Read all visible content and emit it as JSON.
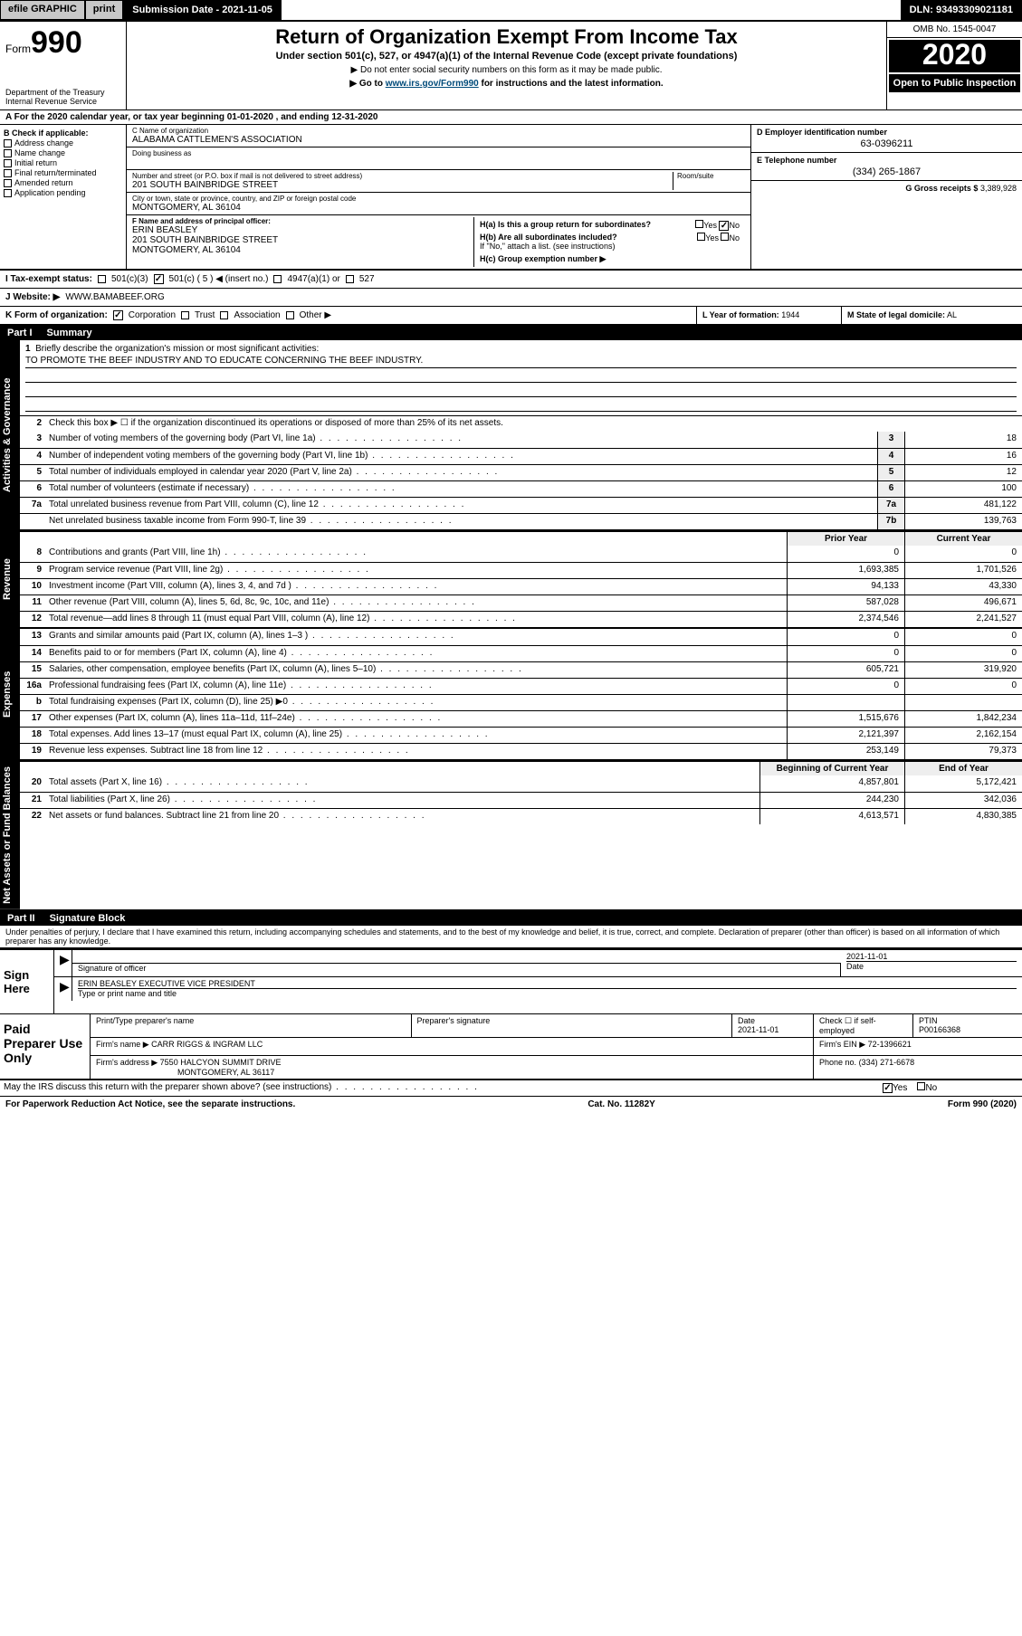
{
  "topbar": {
    "efile_label": "efile GRAPHIC",
    "print_label": "print",
    "submission_label": "Submission Date - 2021-11-05",
    "dln_label": "DLN: 93493309021181"
  },
  "header": {
    "form_word": "Form",
    "form_number": "990",
    "dept1": "Department of the Treasury",
    "dept2": "Internal Revenue Service",
    "title": "Return of Organization Exempt From Income Tax",
    "sub1": "Under section 501(c), 527, or 4947(a)(1) of the Internal Revenue Code (except private foundations)",
    "sub2": "▶ Do not enter social security numbers on this form as it may be made public.",
    "sub3_pre": "▶ Go to ",
    "sub3_link": "www.irs.gov/Form990",
    "sub3_post": " for instructions and the latest information.",
    "omb": "OMB No. 1545-0047",
    "year": "2020",
    "open": "Open to Public Inspection"
  },
  "period": {
    "line": "A For the 2020 calendar year, or tax year beginning 01-01-2020   , and ending 12-31-2020"
  },
  "checkB": {
    "title": "B Check if applicable:",
    "addr": "Address change",
    "name": "Name change",
    "initial": "Initial return",
    "final": "Final return/terminated",
    "amended": "Amended return",
    "app": "Application pending"
  },
  "entity": {
    "c_lbl": "C Name of organization",
    "c_val": "ALABAMA CATTLEMEN'S ASSOCIATION",
    "dba_lbl": "Doing business as",
    "street_lbl": "Number and street (or P.O. box if mail is not delivered to street address)",
    "room_lbl": "Room/suite",
    "street_val": "201 SOUTH BAINBRIDGE STREET",
    "city_lbl": "City or town, state or province, country, and ZIP or foreign postal code",
    "city_val": "MONTGOMERY, AL  36104",
    "f_lbl": "F Name and address of principal officer:",
    "f_name": "ERIN BEASLEY",
    "f_addr1": "201 SOUTH BAINBRIDGE STREET",
    "f_addr2": "MONTGOMERY, AL  36104"
  },
  "right": {
    "d_lbl": "D Employer identification number",
    "d_val": "63-0396211",
    "e_lbl": "E Telephone number",
    "e_val": "(334) 265-1867",
    "g_lbl": "G Gross receipts $",
    "g_val": "3,389,928",
    "ha_lbl": "H(a)  Is this a group return for subordinates?",
    "hb_lbl": "H(b)  Are all subordinates included?",
    "h_note": "If \"No,\" attach a list. (see instructions)",
    "hc_lbl": "H(c)  Group exemption number ▶",
    "yes": "Yes",
    "no": "No"
  },
  "taxstatus": {
    "i_lbl": "I  Tax-exempt status:",
    "s501c3": "501(c)(3)",
    "s501c": "501(c) ( 5 ) ◀ (insert no.)",
    "s4947": "4947(a)(1) or",
    "s527": "527"
  },
  "website": {
    "j_lbl": "J  Website: ▶",
    "j_val": "WWW.BAMABEEF.ORG"
  },
  "korg": {
    "k_lbl": "K Form of organization:",
    "corp": "Corporation",
    "trust": "Trust",
    "assoc": "Association",
    "other": "Other ▶",
    "l_lbl": "L Year of formation:",
    "l_val": "1944",
    "m_lbl": "M State of legal domicile:",
    "m_val": "AL"
  },
  "part1": {
    "hdr_part": "Part I",
    "hdr_title": "Summary",
    "tab_gov": "Activities & Governance",
    "tab_rev": "Revenue",
    "tab_exp": "Expenses",
    "tab_net": "Net Assets or Fund Balances",
    "l1_desc": "Briefly describe the organization's mission or most significant activities:",
    "l1_val": "TO PROMOTE THE BEEF INDUSTRY AND TO EDUCATE CONCERNING THE BEEF INDUSTRY.",
    "l2_desc": "Check this box ▶ ☐  if the organization discontinued its operations or disposed of more than 25% of its net assets.",
    "prior_hdr": "Prior Year",
    "current_hdr": "Current Year",
    "boy_hdr": "Beginning of Current Year",
    "eoy_hdr": "End of Year",
    "lines_single": [
      {
        "n": "3",
        "d": "Number of voting members of the governing body (Part VI, line 1a)",
        "b": "3",
        "v": "18"
      },
      {
        "n": "4",
        "d": "Number of independent voting members of the governing body (Part VI, line 1b)",
        "b": "4",
        "v": "16"
      },
      {
        "n": "5",
        "d": "Total number of individuals employed in calendar year 2020 (Part V, line 2a)",
        "b": "5",
        "v": "12"
      },
      {
        "n": "6",
        "d": "Total number of volunteers (estimate if necessary)",
        "b": "6",
        "v": "100"
      },
      {
        "n": "7a",
        "d": "Total unrelated business revenue from Part VIII, column (C), line 12",
        "b": "7a",
        "v": "481,122"
      },
      {
        "n": "",
        "d": "Net unrelated business taxable income from Form 990-T, line 39",
        "b": "7b",
        "v": "139,763"
      }
    ],
    "lines_rev": [
      {
        "n": "8",
        "d": "Contributions and grants (Part VIII, line 1h)",
        "p": "0",
        "c": "0"
      },
      {
        "n": "9",
        "d": "Program service revenue (Part VIII, line 2g)",
        "p": "1,693,385",
        "c": "1,701,526"
      },
      {
        "n": "10",
        "d": "Investment income (Part VIII, column (A), lines 3, 4, and 7d )",
        "p": "94,133",
        "c": "43,330"
      },
      {
        "n": "11",
        "d": "Other revenue (Part VIII, column (A), lines 5, 6d, 8c, 9c, 10c, and 11e)",
        "p": "587,028",
        "c": "496,671"
      },
      {
        "n": "12",
        "d": "Total revenue—add lines 8 through 11 (must equal Part VIII, column (A), line 12)",
        "p": "2,374,546",
        "c": "2,241,527"
      }
    ],
    "lines_exp": [
      {
        "n": "13",
        "d": "Grants and similar amounts paid (Part IX, column (A), lines 1–3 )",
        "p": "0",
        "c": "0"
      },
      {
        "n": "14",
        "d": "Benefits paid to or for members (Part IX, column (A), line 4)",
        "p": "0",
        "c": "0"
      },
      {
        "n": "15",
        "d": "Salaries, other compensation, employee benefits (Part IX, column (A), lines 5–10)",
        "p": "605,721",
        "c": "319,920"
      },
      {
        "n": "16a",
        "d": "Professional fundraising fees (Part IX, column (A), line 11e)",
        "p": "0",
        "c": "0"
      },
      {
        "n": "b",
        "d": "Total fundraising expenses (Part IX, column (D), line 25) ▶0",
        "p": "",
        "c": ""
      },
      {
        "n": "17",
        "d": "Other expenses (Part IX, column (A), lines 11a–11d, 11f–24e)",
        "p": "1,515,676",
        "c": "1,842,234"
      },
      {
        "n": "18",
        "d": "Total expenses. Add lines 13–17 (must equal Part IX, column (A), line 25)",
        "p": "2,121,397",
        "c": "2,162,154"
      },
      {
        "n": "19",
        "d": "Revenue less expenses. Subtract line 18 from line 12",
        "p": "253,149",
        "c": "79,373"
      }
    ],
    "lines_net": [
      {
        "n": "20",
        "d": "Total assets (Part X, line 16)",
        "p": "4,857,801",
        "c": "5,172,421"
      },
      {
        "n": "21",
        "d": "Total liabilities (Part X, line 26)",
        "p": "244,230",
        "c": "342,036"
      },
      {
        "n": "22",
        "d": "Net assets or fund balances. Subtract line 21 from line 20",
        "p": "4,613,571",
        "c": "4,830,385"
      }
    ]
  },
  "part2": {
    "hdr_part": "Part II",
    "hdr_title": "Signature Block",
    "declare": "Under penalties of perjury, I declare that I have examined this return, including accompanying schedules and statements, and to the best of my knowledge and belief, it is true, correct, and complete. Declaration of preparer (other than officer) is based on all information of which preparer has any knowledge."
  },
  "sign": {
    "here": "Sign Here",
    "sig_lbl": "Signature of officer",
    "date_lbl": "Date",
    "date_val": "2021-11-01",
    "name_val": "ERIN BEASLEY  EXECUTIVE VICE PRESIDENT",
    "name_lbl": "Type or print name and title"
  },
  "prep": {
    "title": "Paid Preparer Use Only",
    "r1c1": "Print/Type preparer's name",
    "r1c2": "Preparer's signature",
    "r1c3_lbl": "Date",
    "r1c3_val": "2021-11-01",
    "r1c4": "Check ☐ if self-employed",
    "r1c5_lbl": "PTIN",
    "r1c5_val": "P00166368",
    "r2_lbl": "Firm's name    ▶",
    "r2_val": "CARR RIGGS & INGRAM LLC",
    "r2_ein_lbl": "Firm's EIN ▶",
    "r2_ein_val": "72-1396621",
    "r3_lbl": "Firm's address ▶",
    "r3_val1": "7550 HALCYON SUMMIT DRIVE",
    "r3_val2": "MONTGOMERY, AL  36117",
    "r3_ph_lbl": "Phone no.",
    "r3_ph_val": "(334) 271-6678"
  },
  "discuss": {
    "q": "May the IRS discuss this return with the preparer shown above? (see instructions)",
    "yes": "Yes",
    "no": "No"
  },
  "footer": {
    "left": "For Paperwork Reduction Act Notice, see the separate instructions.",
    "mid": "Cat. No. 11282Y",
    "right": "Form 990 (2020)"
  }
}
